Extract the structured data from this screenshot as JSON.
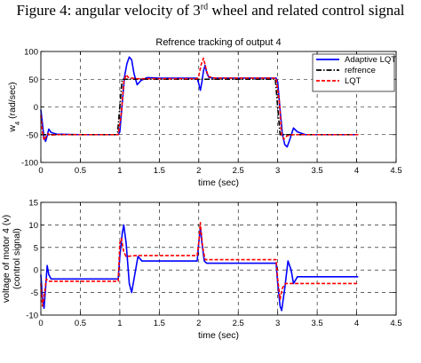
{
  "figure": {
    "caption_main": "Figure 4: angular velocity of 3",
    "caption_sup": "rd",
    "caption_tail": " wheel and related control signal"
  },
  "colors": {
    "adaptive_lqt": "#0000ff",
    "refrence": "#000000",
    "lqt": "#ff0000",
    "grid": "#000000",
    "background": "#ffffff"
  },
  "chart_data": [
    {
      "type": "line",
      "title": "Refrence tracking of output 4",
      "xlabel": "time (sec)",
      "ylabel": "w",
      "ylabel_sub": "4",
      "ylabel_unit": " (rad/sec)",
      "xlim": [
        0,
        4.5
      ],
      "ylim": [
        -100,
        100
      ],
      "xticks": [
        "0",
        "0.5",
        "1",
        "1.5",
        "2",
        "2.5",
        "3",
        "3.5",
        "4",
        "4.5"
      ],
      "yticks": [
        "-100",
        "-50",
        "0",
        "50",
        "100"
      ],
      "grid": true,
      "legend_position": "top-right",
      "legend": [
        "Adaptive LQT",
        "refrence",
        "LQT"
      ],
      "series": [
        {
          "name": "Adaptive LQT",
          "points": [
            [
              0,
              -5
            ],
            [
              0.02,
              -30
            ],
            [
              0.04,
              -55
            ],
            [
              0.06,
              -62
            ],
            [
              0.08,
              -52
            ],
            [
              0.1,
              -40
            ],
            [
              0.13,
              -46
            ],
            [
              0.2,
              -49
            ],
            [
              0.5,
              -50
            ],
            [
              0.98,
              -50
            ],
            [
              1.0,
              -45
            ],
            [
              1.03,
              5
            ],
            [
              1.06,
              55
            ],
            [
              1.09,
              78
            ],
            [
              1.12,
              90
            ],
            [
              1.15,
              85
            ],
            [
              1.18,
              60
            ],
            [
              1.22,
              40
            ],
            [
              1.27,
              48
            ],
            [
              1.35,
              53
            ],
            [
              1.5,
              52
            ],
            [
              1.98,
              52
            ],
            [
              2.0,
              42
            ],
            [
              2.02,
              30
            ],
            [
              2.04,
              45
            ],
            [
              2.06,
              65
            ],
            [
              2.08,
              75
            ],
            [
              2.1,
              62
            ],
            [
              2.13,
              53
            ],
            [
              2.2,
              52
            ],
            [
              2.98,
              52
            ],
            [
              3.0,
              45
            ],
            [
              3.03,
              -5
            ],
            [
              3.06,
              -50
            ],
            [
              3.09,
              -68
            ],
            [
              3.12,
              -72
            ],
            [
              3.15,
              -60
            ],
            [
              3.2,
              -38
            ],
            [
              3.25,
              -45
            ],
            [
              3.35,
              -50
            ],
            [
              4.02,
              -50
            ]
          ]
        },
        {
          "name": "refrence",
          "points": [
            [
              0,
              -50
            ],
            [
              0.97,
              -50
            ],
            [
              1.03,
              50
            ],
            [
              2.97,
              50
            ],
            [
              3.03,
              -50
            ],
            [
              4.02,
              -50
            ]
          ]
        },
        {
          "name": "LQT",
          "points": [
            [
              0,
              -15
            ],
            [
              0.02,
              -45
            ],
            [
              0.04,
              -60
            ],
            [
              0.06,
              -55
            ],
            [
              0.09,
              -48
            ],
            [
              0.12,
              -51
            ],
            [
              0.2,
              -50
            ],
            [
              0.98,
              -50
            ],
            [
              1.02,
              -10
            ],
            [
              1.05,
              45
            ],
            [
              1.08,
              58
            ],
            [
              1.11,
              53
            ],
            [
              1.2,
              51
            ],
            [
              1.98,
              51
            ],
            [
              2.0,
              56
            ],
            [
              2.03,
              76
            ],
            [
              2.06,
              88
            ],
            [
              2.09,
              70
            ],
            [
              2.12,
              55
            ],
            [
              2.2,
              52
            ],
            [
              2.98,
              52
            ],
            [
              3.02,
              10
            ],
            [
              3.05,
              -50
            ],
            [
              3.08,
              -58
            ],
            [
              3.12,
              -52
            ],
            [
              3.2,
              -50
            ],
            [
              4.02,
              -50
            ]
          ]
        }
      ]
    },
    {
      "type": "line",
      "title": "",
      "xlabel": "time (sec)",
      "ylabel": "voltage of motor 4 (v)",
      "ylabel2": "(control signal)",
      "xlim": [
        0,
        4.5
      ],
      "ylim": [
        -10,
        15
      ],
      "xticks": [
        "0",
        "0.5",
        "1",
        "1.5",
        "2",
        "2.5",
        "3",
        "3.5",
        "4",
        "4.5"
      ],
      "yticks": [
        "-10",
        "-5",
        "0",
        "5",
        "10",
        "15"
      ],
      "grid": true,
      "series": [
        {
          "name": "Adaptive LQT",
          "points": [
            [
              0,
              -1
            ],
            [
              0.02,
              -6
            ],
            [
              0.04,
              -8.5
            ],
            [
              0.06,
              -4
            ],
            [
              0.08,
              1
            ],
            [
              0.1,
              -1
            ],
            [
              0.13,
              -2
            ],
            [
              0.2,
              -2
            ],
            [
              0.98,
              -2
            ],
            [
              1.0,
              3
            ],
            [
              1.03,
              8
            ],
            [
              1.05,
              10
            ],
            [
              1.08,
              6
            ],
            [
              1.12,
              -3
            ],
            [
              1.15,
              -5
            ],
            [
              1.19,
              -1
            ],
            [
              1.23,
              3
            ],
            [
              1.28,
              2
            ],
            [
              1.35,
              2
            ],
            [
              1.98,
              2
            ],
            [
              2.0,
              6
            ],
            [
              2.02,
              9.5
            ],
            [
              2.04,
              6
            ],
            [
              2.07,
              2
            ],
            [
              2.1,
              1.5
            ],
            [
              2.98,
              1.5
            ],
            [
              3.0,
              -3
            ],
            [
              3.03,
              -8
            ],
            [
              3.05,
              -9
            ],
            [
              3.09,
              -4
            ],
            [
              3.13,
              2
            ],
            [
              3.17,
              0
            ],
            [
              3.2,
              -3
            ],
            [
              3.25,
              -1.5
            ],
            [
              3.4,
              -1.5
            ],
            [
              4.02,
              -1.5
            ]
          ]
        },
        {
          "name": "LQT",
          "points": [
            [
              0,
              -3
            ],
            [
              0.02,
              -8
            ],
            [
              0.04,
              -6
            ],
            [
              0.07,
              -2
            ],
            [
              0.1,
              -2.5
            ],
            [
              0.2,
              -2.5
            ],
            [
              0.98,
              -2.5
            ],
            [
              1.0,
              6
            ],
            [
              1.02,
              7
            ],
            [
              1.05,
              4
            ],
            [
              1.08,
              3
            ],
            [
              1.2,
              3.2
            ],
            [
              1.98,
              3.2
            ],
            [
              2.0,
              6
            ],
            [
              2.02,
              10.5
            ],
            [
              2.05,
              5
            ],
            [
              2.08,
              2.3
            ],
            [
              2.98,
              2.3
            ],
            [
              3.0,
              -2
            ],
            [
              3.03,
              -6.5
            ],
            [
              3.06,
              -4
            ],
            [
              3.1,
              -3
            ],
            [
              3.3,
              -3
            ],
            [
              4.02,
              -3
            ]
          ]
        }
      ]
    }
  ]
}
